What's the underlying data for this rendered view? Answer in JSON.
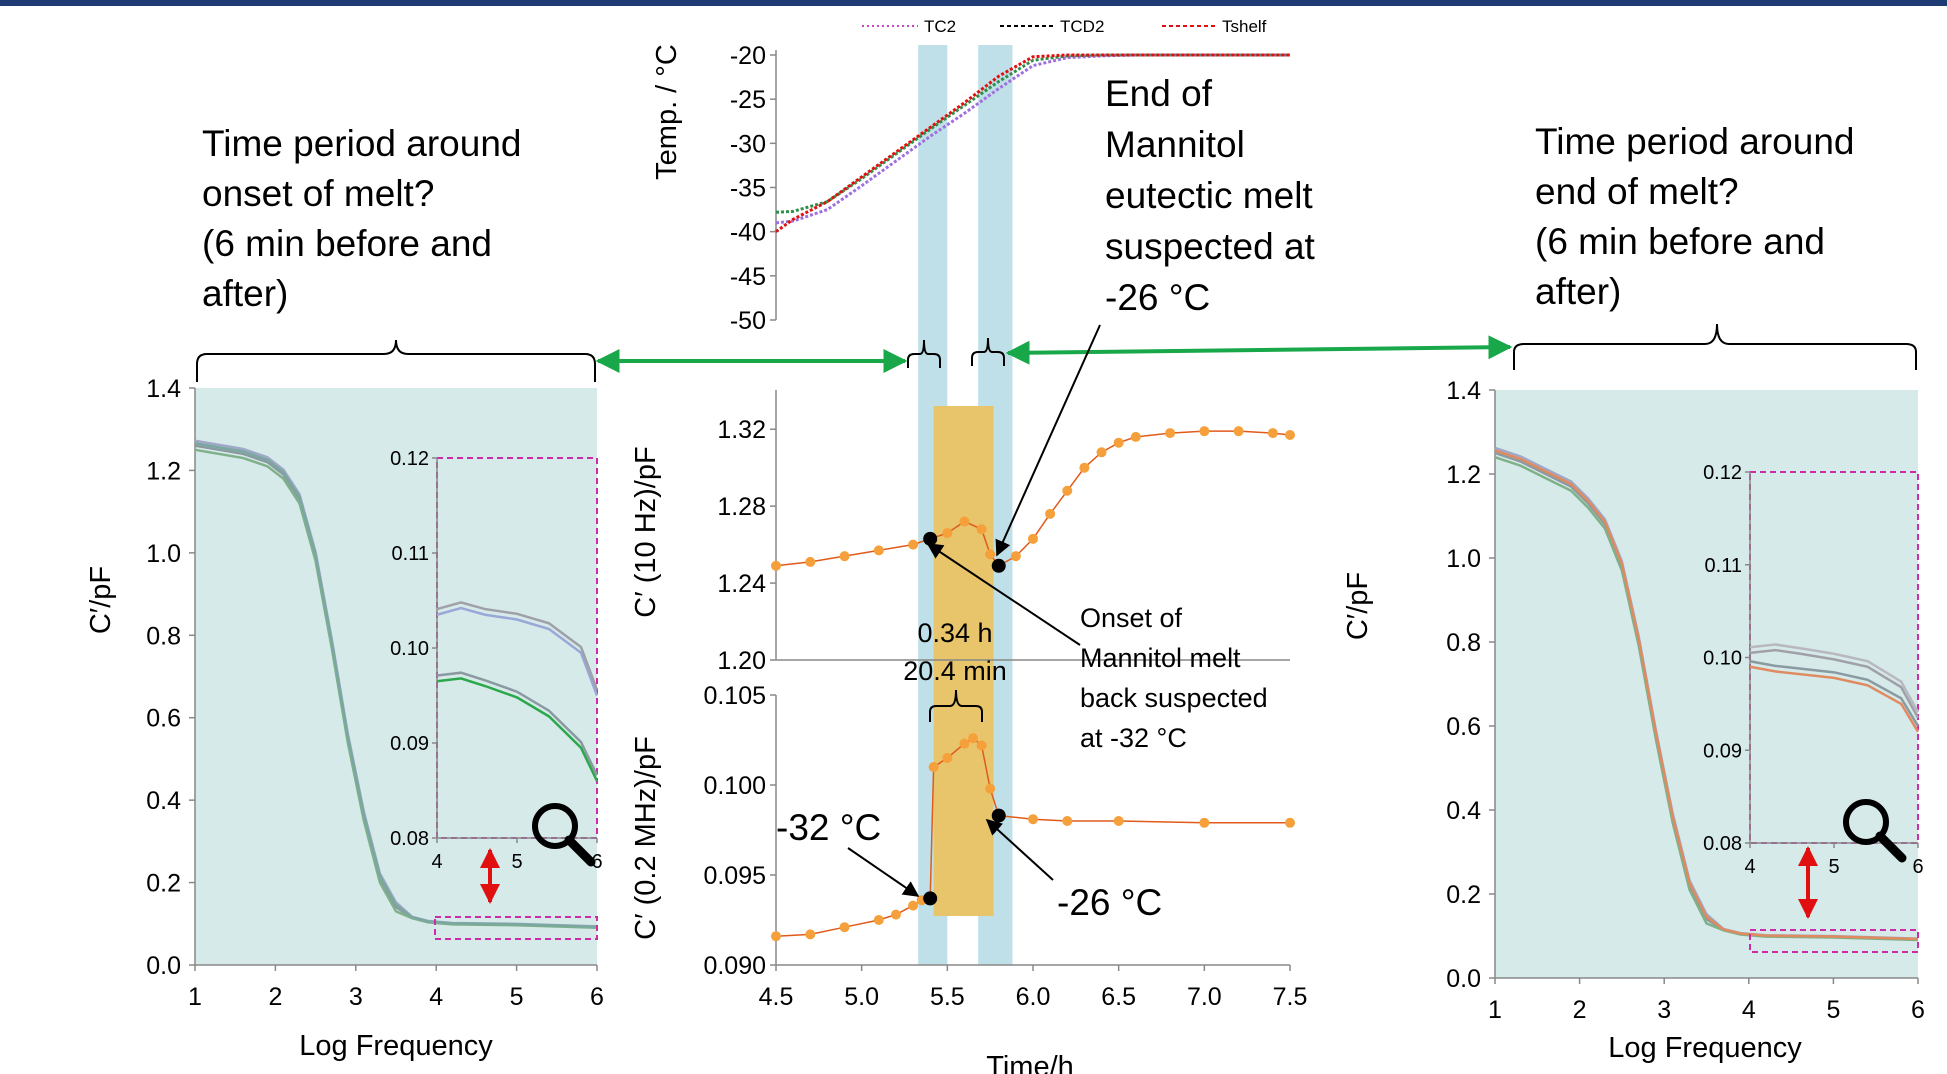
{
  "annotations": {
    "left_question": [
      "Time period around",
      "onset of melt?",
      "(6 min before and",
      "after)"
    ],
    "right_question": [
      "Time period around",
      "end of melt?",
      "(6 min before and",
      "after)"
    ],
    "end_melt": [
      "End of",
      "Mannitol",
      "eutectic melt",
      "suspected at",
      "-26 °C"
    ],
    "onset_melt": [
      "Onset of",
      "Mannitol melt",
      "back suspected",
      "at -32 °C"
    ],
    "duration": [
      "0.34 h",
      "20.4 min"
    ],
    "minus32": "-32 °C",
    "minus26": "-26 °C"
  },
  "colors": {
    "panel_bg": "#d6eaea",
    "band": "#bfe0e8",
    "melt_box": "#e8c46a",
    "orange": "#f5a03a",
    "green_arrow": "#18a84a",
    "red_arrow": "#e01010",
    "dashed_box": "#cc2ca8",
    "gray": "#9aa0a6",
    "blue": "#9aa8d8",
    "green": "#2aa84a"
  },
  "chart_data": [
    {
      "id": "temperature",
      "type": "line",
      "ylabel": "Temp. / °C",
      "yticks": [
        -20,
        -25,
        -30,
        -35,
        -40,
        -45,
        -50
      ],
      "ylim": [
        -50,
        -20
      ],
      "xlim": [
        4.5,
        7.5
      ],
      "legend": [
        "TC2",
        "TCD2",
        "Tshelf"
      ],
      "legend_position": "top",
      "series": [
        {
          "name": "TC2",
          "x": [
            4.5,
            4.6,
            4.8,
            5.0,
            5.2,
            5.4,
            5.6,
            5.8,
            6.0,
            6.2,
            6.4,
            6.6,
            6.8,
            7.0,
            7.2,
            7.5
          ],
          "y": [
            -39.0,
            -38.8,
            -37.5,
            -34.8,
            -32.0,
            -29.2,
            -26.6,
            -23.8,
            -21.2,
            -20.3,
            -20.1,
            -20.0,
            -20.0,
            -20.0,
            -20.0,
            -20.0
          ]
        },
        {
          "name": "TCD2",
          "x": [
            4.5,
            4.6,
            4.8,
            5.0,
            5.2,
            5.4,
            5.6,
            5.8,
            6.0,
            6.2,
            6.4,
            6.6,
            6.8,
            7.0,
            7.2,
            7.5
          ],
          "y": [
            -37.8,
            -37.7,
            -36.6,
            -34.0,
            -31.2,
            -28.4,
            -25.7,
            -23.0,
            -20.6,
            -20.1,
            -20.0,
            -20.0,
            -20.0,
            -20.0,
            -20.0,
            -20.0
          ]
        },
        {
          "name": "Tshelf",
          "x": [
            4.5,
            4.6,
            4.8,
            5.0,
            5.2,
            5.4,
            5.6,
            5.8,
            6.0,
            6.2,
            6.4,
            6.6,
            6.8,
            7.0,
            7.2,
            7.5
          ],
          "y": [
            -40.0,
            -38.6,
            -36.6,
            -33.8,
            -31.0,
            -28.2,
            -25.4,
            -22.4,
            -20.2,
            -20.0,
            -20.0,
            -20.0,
            -20.0,
            -20.0,
            -20.0,
            -20.0
          ]
        }
      ],
      "bands": [
        [
          5.33,
          5.5
        ],
        [
          5.68,
          5.88
        ]
      ]
    },
    {
      "id": "cprime_10hz",
      "type": "scatter",
      "ylabel": "C′ (10 Hz)/pF",
      "yticks": [
        "1.32",
        "1.28",
        "1.24",
        "1.20"
      ],
      "ylim": [
        1.2,
        1.33
      ],
      "xlim": [
        4.5,
        7.5
      ],
      "points": {
        "x": [
          4.5,
          4.7,
          4.9,
          5.1,
          5.3,
          5.4,
          5.5,
          5.6,
          5.7,
          5.75,
          5.8,
          5.9,
          6.0,
          6.1,
          6.2,
          6.3,
          6.4,
          6.5,
          6.6,
          6.8,
          7.0,
          7.2,
          7.4,
          7.5
        ],
        "y": [
          1.249,
          1.251,
          1.254,
          1.257,
          1.26,
          1.263,
          1.266,
          1.272,
          1.268,
          1.255,
          1.249,
          1.254,
          1.263,
          1.276,
          1.288,
          1.3,
          1.308,
          1.313,
          1.316,
          1.318,
          1.319,
          1.319,
          1.318,
          1.317
        ]
      },
      "markers": [
        {
          "x": 5.4,
          "y": 1.263
        },
        {
          "x": 5.8,
          "y": 1.249
        }
      ]
    },
    {
      "id": "cprime_0p2mhz",
      "type": "scatter",
      "ylabel": "C′ (0.2 MHz)/pF",
      "yticks": [
        "0.105",
        "0.100",
        "0.095",
        "0.090"
      ],
      "ylim": [
        0.09,
        0.105
      ],
      "xlim": [
        4.5,
        7.5
      ],
      "xticks": [
        "4.5",
        "5.0",
        "5.5",
        "6.0",
        "6.5",
        "7.0",
        "7.5"
      ],
      "xlabel": "Time/h",
      "points": {
        "x": [
          4.5,
          4.7,
          4.9,
          5.1,
          5.2,
          5.3,
          5.35,
          5.4,
          5.42,
          5.5,
          5.6,
          5.65,
          5.7,
          5.75,
          5.8,
          6.0,
          6.2,
          6.5,
          7.0,
          7.5
        ],
        "y": [
          0.0916,
          0.0917,
          0.0921,
          0.0925,
          0.0928,
          0.0933,
          0.0936,
          0.0937,
          0.101,
          0.1015,
          0.1023,
          0.1026,
          0.1022,
          0.0998,
          0.0983,
          0.0981,
          0.098,
          0.098,
          0.0979,
          0.0979
        ]
      },
      "markers": [
        {
          "x": 5.4,
          "y": 0.0937
        },
        {
          "x": 5.8,
          "y": 0.0983
        }
      ],
      "melt_box": [
        5.42,
        5.77
      ]
    },
    {
      "id": "left_freq",
      "type": "line",
      "xlabel": "Log Frequency",
      "ylabel": "C′/pF",
      "xticks": [
        "1",
        "2",
        "3",
        "4",
        "5",
        "6"
      ],
      "yticks": [
        "1.4",
        "1.2",
        "1.0",
        "0.8",
        "0.6",
        "0.4",
        "0.2",
        "0.0"
      ],
      "xlim": [
        1,
        6
      ],
      "ylim": [
        0,
        1.4
      ],
      "curve": {
        "x": [
          1.0,
          1.3,
          1.6,
          1.9,
          2.1,
          2.3,
          2.5,
          2.7,
          2.9,
          3.1,
          3.3,
          3.5,
          3.7,
          3.9,
          4.2,
          5.0,
          6.0
        ],
        "y": [
          1.26,
          1.25,
          1.24,
          1.22,
          1.19,
          1.13,
          0.99,
          0.78,
          0.55,
          0.36,
          0.21,
          0.14,
          0.115,
          0.105,
          0.1,
          0.098,
          0.092
        ]
      },
      "inset": {
        "xticks": [
          "4",
          "5",
          "6"
        ],
        "yticks": [
          "0.12",
          "0.11",
          "0.10",
          "0.09",
          "0.08"
        ],
        "xlim": [
          4,
          6
        ],
        "ylim": [
          0.08,
          0.12
        ],
        "series": [
          {
            "x": [
              4.0,
              4.3,
              4.6,
              5.0,
              5.4,
              5.8,
              6.0
            ],
            "y": [
              0.1035,
              0.1042,
              0.1035,
              0.103,
              0.102,
              0.0995,
              0.095
            ]
          },
          {
            "x": [
              4.0,
              4.3,
              4.6,
              5.0,
              5.4,
              5.8,
              6.0
            ],
            "y": [
              0.0965,
              0.0968,
              0.096,
              0.0948,
              0.0928,
              0.0895,
              0.086
            ]
          }
        ]
      }
    },
    {
      "id": "right_freq",
      "type": "line",
      "xlabel": "Log Frequency",
      "ylabel": "C′/pF",
      "xticks": [
        "1",
        "2",
        "3",
        "4",
        "5",
        "6"
      ],
      "yticks": [
        "1.4",
        "1.2",
        "1.0",
        "0.8",
        "0.6",
        "0.4",
        "0.2",
        "0.0"
      ],
      "xlim": [
        1,
        6
      ],
      "ylim": [
        0,
        1.4
      ],
      "curve": {
        "x": [
          1.0,
          1.3,
          1.6,
          1.9,
          2.1,
          2.3,
          2.5,
          2.7,
          2.9,
          3.1,
          3.3,
          3.5,
          3.7,
          3.9,
          4.2,
          5.0,
          6.0
        ],
        "y": [
          1.25,
          1.23,
          1.2,
          1.17,
          1.13,
          1.08,
          0.98,
          0.8,
          0.58,
          0.38,
          0.22,
          0.14,
          0.115,
          0.105,
          0.1,
          0.098,
          0.092
        ]
      },
      "inset": {
        "xticks": [
          "4",
          "5",
          "6"
        ],
        "yticks": [
          "0.12",
          "0.11",
          "0.10",
          "0.09",
          "0.08"
        ],
        "xlim": [
          4,
          6
        ],
        "ylim": [
          0.08,
          0.12
        ],
        "series": [
          {
            "x": [
              4.0,
              4.3,
              4.6,
              5.0,
              5.4,
              5.8,
              6.0
            ],
            "y": [
              0.1005,
              0.1008,
              0.1004,
              0.0998,
              0.099,
              0.0968,
              0.0935
            ]
          },
          {
            "x": [
              4.0,
              4.3,
              4.6,
              5.0,
              5.4,
              5.8,
              6.0
            ],
            "y": [
              0.099,
              0.0985,
              0.0982,
              0.0978,
              0.097,
              0.095,
              0.092
            ]
          }
        ]
      }
    }
  ]
}
